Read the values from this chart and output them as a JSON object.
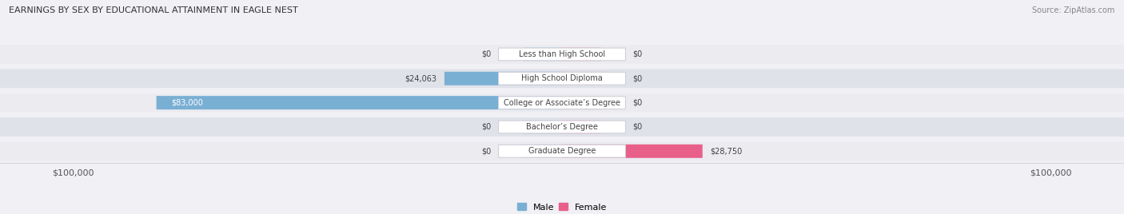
{
  "title": "EARNINGS BY SEX BY EDUCATIONAL ATTAINMENT IN EAGLE NEST",
  "source": "Source: ZipAtlas.com",
  "categories": [
    "Less than High School",
    "High School Diploma",
    "College or Associate’s Degree",
    "Bachelor’s Degree",
    "Graduate Degree"
  ],
  "male_values": [
    0,
    24063,
    83000,
    0,
    0
  ],
  "female_values": [
    0,
    0,
    0,
    0,
    28750
  ],
  "male_stub": 8000,
  "female_stub": 8000,
  "xlim": 100000,
  "male_color_full": "#7aafd4",
  "male_color_stub": "#b8d0e8",
  "female_color_full": "#e8608a",
  "female_color_stub": "#f4b0c8",
  "row_bg_color_odd": "#ebebf0",
  "row_bg_color_even": "#e0e2ea",
  "bg_color": "#f0f0f5",
  "label_box_color": "#ffffff",
  "label_text_color": "#444444",
  "value_text_color": "#444444",
  "male_legend_color": "#7aafd4",
  "female_legend_color": "#e8608a",
  "title_color": "#333333",
  "source_color": "#888888",
  "tick_label_color": "#555555"
}
